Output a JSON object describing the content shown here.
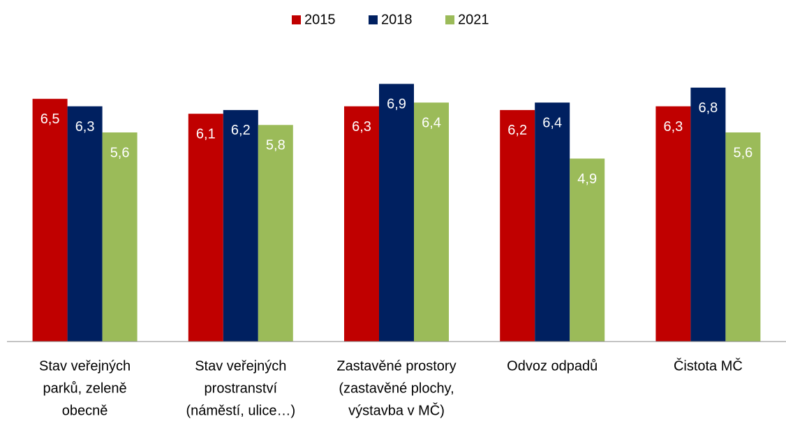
{
  "chart_data": {
    "type": "bar",
    "categories": [
      [
        "Stav veřejných",
        "parků, zeleně",
        "obecně"
      ],
      [
        "Stav veřejných",
        "prostranství",
        "(náměstí, ulice…)"
      ],
      [
        "Zastavěné prostory",
        "(zastavěné plochy,",
        "výstavba v MČ)"
      ],
      [
        "Odvoz odpadů"
      ],
      [
        "Čistota MČ"
      ]
    ],
    "series": [
      {
        "name": "2015",
        "color": "#c00000",
        "values": [
          6.5,
          6.1,
          6.3,
          6.2,
          6.3
        ],
        "value_labels": [
          "6,5",
          "6,1",
          "6,3",
          "6,2",
          "6,3"
        ]
      },
      {
        "name": "2018",
        "color": "#002060",
        "values": [
          6.3,
          6.2,
          6.9,
          6.4,
          6.8
        ],
        "value_labels": [
          "6,3",
          "6,2",
          "6,9",
          "6,4",
          "6,8"
        ]
      },
      {
        "name": "2021",
        "color": "#9bbb59",
        "values": [
          5.6,
          5.8,
          6.4,
          4.9,
          5.6
        ],
        "value_labels": [
          "5,6",
          "5,8",
          "6,4",
          "4,9",
          "5,6"
        ]
      }
    ],
    "ylim": [
      0,
      7
    ],
    "legend": "top"
  }
}
